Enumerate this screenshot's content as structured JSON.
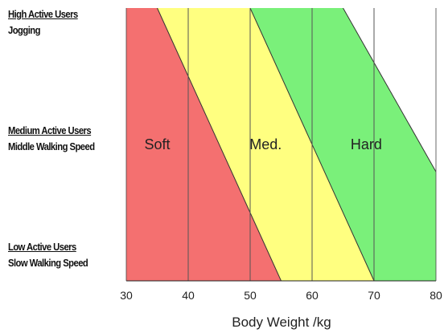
{
  "chart_data": {
    "type": "area",
    "xlabel": "Body Weight /kg",
    "xlim": [
      30,
      80
    ],
    "xticks": [
      30,
      40,
      50,
      60,
      70,
      80
    ],
    "y_categories": [
      {
        "title": "High Active Users",
        "subtitle": "Jogging",
        "level": 1.0
      },
      {
        "title": "Medium Active Users",
        "subtitle": "Middle Walking Speed",
        "level": 0.5
      },
      {
        "title": "Low Active Users",
        "subtitle": "Slow Walking Speed",
        "level": 0.0
      }
    ],
    "bands": [
      {
        "name": "Soft",
        "color": "#f47070",
        "low_weight_at_low": 30,
        "low_weight_at_high": 20,
        "high_weight_at_low": 55,
        "high_weight_at_high": 35
      },
      {
        "name": "Med.",
        "color": "#ffff80",
        "low_weight_at_low": 55,
        "low_weight_at_high": 35,
        "high_weight_at_low": 70,
        "high_weight_at_high": 50
      },
      {
        "name": "Hard",
        "color": "#7af07a",
        "low_weight_at_low": 70,
        "low_weight_at_high": 50,
        "high_weight_at_low": 90,
        "high_weight_at_high": 65
      }
    ]
  }
}
